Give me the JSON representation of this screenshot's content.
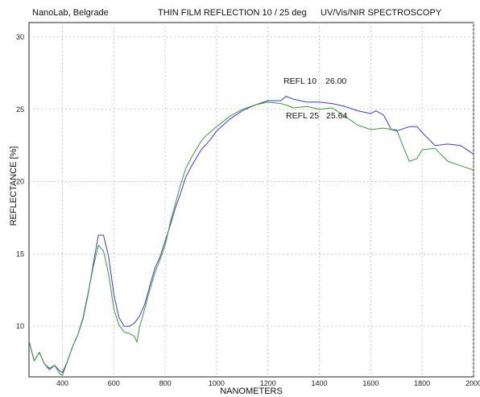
{
  "header": {
    "left": "NanoLab, Belgrade",
    "middle": "THIN FILM    REFLECTION 10 / 25 deg",
    "right": "UV/Vis/NIR SPECTROSCOPY"
  },
  "chart_data": {
    "type": "line",
    "xlabel": "NANOMETERS",
    "ylabel": "REFLECTANCE   [%]",
    "xlim": [
      270,
      2000
    ],
    "ylim": [
      6.5,
      31
    ],
    "xticks": [
      400,
      600,
      800,
      1000,
      1200,
      1400,
      1600,
      1800,
      2000
    ],
    "yticks": [
      10,
      15,
      20,
      25,
      30
    ],
    "grid": true,
    "series": [
      {
        "name": "REFL 10",
        "color": "#3a3ad6",
        "annotation_value": "26.00",
        "x": [
          270,
          290,
          310,
          330,
          350,
          370,
          390,
          400,
          420,
          440,
          460,
          480,
          500,
          520,
          540,
          560,
          580,
          600,
          620,
          640,
          660,
          680,
          700,
          720,
          740,
          760,
          780,
          800,
          820,
          840,
          860,
          880,
          900,
          920,
          940,
          960,
          980,
          1000,
          1050,
          1100,
          1150,
          1200,
          1250,
          1270,
          1300,
          1350,
          1400,
          1450,
          1500,
          1550,
          1600,
          1620,
          1650,
          1680,
          1700,
          1750,
          1780,
          1800,
          1850,
          1900,
          1950,
          2000
        ],
        "y": [
          9.0,
          7.6,
          8.2,
          7.4,
          7.0,
          7.3,
          6.9,
          6.8,
          7.6,
          8.6,
          9.4,
          10.5,
          12.2,
          14.3,
          16.3,
          16.3,
          14.8,
          12.2,
          10.6,
          10.0,
          10.0,
          10.2,
          10.7,
          11.5,
          12.8,
          14.0,
          14.8,
          15.9,
          17.0,
          18.2,
          19.2,
          20.3,
          21.0,
          21.6,
          22.2,
          22.6,
          23.0,
          23.5,
          24.3,
          24.9,
          25.3,
          25.6,
          25.6,
          25.9,
          25.7,
          25.5,
          25.5,
          25.4,
          25.2,
          24.9,
          24.7,
          24.9,
          24.6,
          23.6,
          23.5,
          23.8,
          23.8,
          23.4,
          22.5,
          22.6,
          22.5,
          21.9
        ]
      },
      {
        "name": "REFL 25",
        "color": "#3a9a3a",
        "annotation_value": "25.64",
        "x": [
          270,
          290,
          310,
          330,
          350,
          370,
          390,
          400,
          420,
          440,
          460,
          480,
          500,
          520,
          540,
          560,
          580,
          600,
          620,
          640,
          660,
          680,
          690,
          700,
          720,
          740,
          760,
          780,
          800,
          820,
          840,
          860,
          880,
          900,
          920,
          940,
          960,
          980,
          1000,
          1050,
          1100,
          1150,
          1200,
          1250,
          1270,
          1300,
          1350,
          1400,
          1450,
          1500,
          1550,
          1600,
          1650,
          1680,
          1700,
          1720,
          1750,
          1780,
          1800,
          1850,
          1900,
          1950,
          2000
        ],
        "y": [
          9.0,
          7.6,
          8.2,
          7.4,
          7.1,
          7.3,
          6.7,
          6.6,
          7.6,
          8.6,
          9.4,
          10.6,
          12.3,
          14.1,
          15.6,
          15.2,
          13.6,
          11.2,
          10.1,
          9.6,
          9.5,
          9.3,
          8.9,
          9.9,
          11.2,
          12.5,
          13.7,
          14.6,
          15.6,
          17.2,
          18.5,
          19.8,
          20.9,
          21.6,
          22.2,
          22.8,
          23.2,
          23.5,
          23.8,
          24.5,
          25.0,
          25.3,
          25.5,
          25.4,
          25.3,
          25.1,
          25.2,
          25.0,
          25.1,
          24.5,
          23.9,
          23.6,
          23.7,
          23.6,
          23.6,
          22.7,
          21.4,
          21.6,
          22.2,
          22.3,
          21.4,
          21.1,
          20.8
        ]
      }
    ]
  }
}
